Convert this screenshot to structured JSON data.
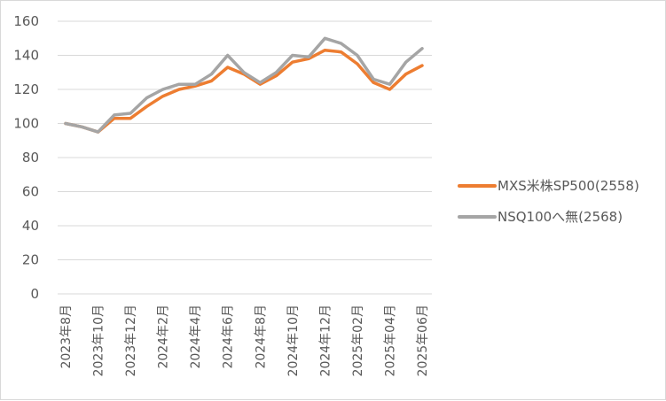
{
  "chart_data": {
    "type": "line",
    "title": "",
    "xlabel": "",
    "ylabel": "",
    "ylim": [
      0,
      160
    ],
    "yticks": [
      0,
      20,
      40,
      60,
      80,
      100,
      120,
      140,
      160
    ],
    "grid": true,
    "legend_position": "right",
    "x": [
      "2023年8月",
      "2023年9月",
      "2023年10月",
      "2023年11月",
      "2023年12月",
      "2024年1月",
      "2024年2月",
      "2024年3月",
      "2024年4月",
      "2024年5月",
      "2024年6月",
      "2024年7月",
      "2024年8月",
      "2024年9月",
      "2024年10月",
      "2024年11月",
      "2024年12月",
      "2025年01月",
      "2025年02月",
      "2025年03月",
      "2025年04月",
      "2025年05月",
      "2025年06月"
    ],
    "x_tick_labels": [
      "2023年8月",
      "",
      "2023年10月",
      "",
      "2023年12月",
      "",
      "2024年2月",
      "",
      "2024年4月",
      "",
      "2024年6月",
      "",
      "2024年8月",
      "",
      "2024年10月",
      "",
      "2024年12月",
      "",
      "2025年02月",
      "",
      "2025年04月",
      "",
      "2025年06月"
    ],
    "series": [
      {
        "name": "MXS米株SP500(2558)",
        "color": "#ed7d31",
        "values": [
          100,
          98,
          95,
          103,
          103,
          110,
          116,
          120,
          122,
          125,
          133,
          129,
          123,
          128,
          136,
          138,
          143,
          142,
          135,
          124,
          120,
          129,
          134
        ]
      },
      {
        "name": "NSQ100へ無(2568)",
        "color": "#a5a5a5",
        "values": [
          100,
          98,
          95,
          105,
          106,
          115,
          120,
          123,
          123,
          129,
          140,
          130,
          124,
          130,
          140,
          139,
          150,
          147,
          140,
          126,
          123,
          136,
          144
        ]
      }
    ]
  }
}
